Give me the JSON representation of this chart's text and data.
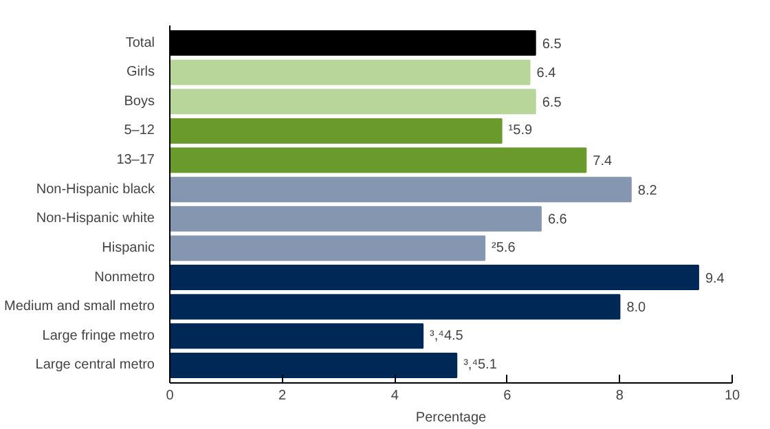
{
  "chart_data": {
    "type": "bar",
    "orientation": "horizontal",
    "xlabel": "Percentage",
    "categories": [
      "Total",
      "Girls",
      "Boys",
      "5–12",
      "13–17",
      "Non-Hispanic black",
      "Non-Hispanic white",
      "Hispanic",
      "Nonmetro",
      "Medium and small metro",
      "Large fringe metro",
      "Large central metro"
    ],
    "values": [
      6.5,
      6.4,
      6.5,
      5.9,
      7.4,
      8.2,
      6.6,
      5.6,
      9.4,
      8.0,
      4.5,
      5.1
    ],
    "colors": [
      "#000000",
      "#b8d69a",
      "#b8d69a",
      "#6a9a2c",
      "#6a9a2c",
      "#8496b0",
      "#8496b0",
      "#8496b0",
      "#002856",
      "#002856",
      "#002856",
      "#002856"
    ],
    "value_labels": [
      "6.5",
      "6.4",
      "6.5",
      "¹5.9",
      "7.4",
      "8.2",
      "6.6",
      "²5.6",
      "9.4",
      "8.0",
      "³,⁴4.5",
      "³,⁴5.1"
    ],
    "xlim": [
      0,
      10
    ],
    "xticks": [
      0,
      2,
      4,
      6,
      8,
      10
    ],
    "grid": false
  }
}
